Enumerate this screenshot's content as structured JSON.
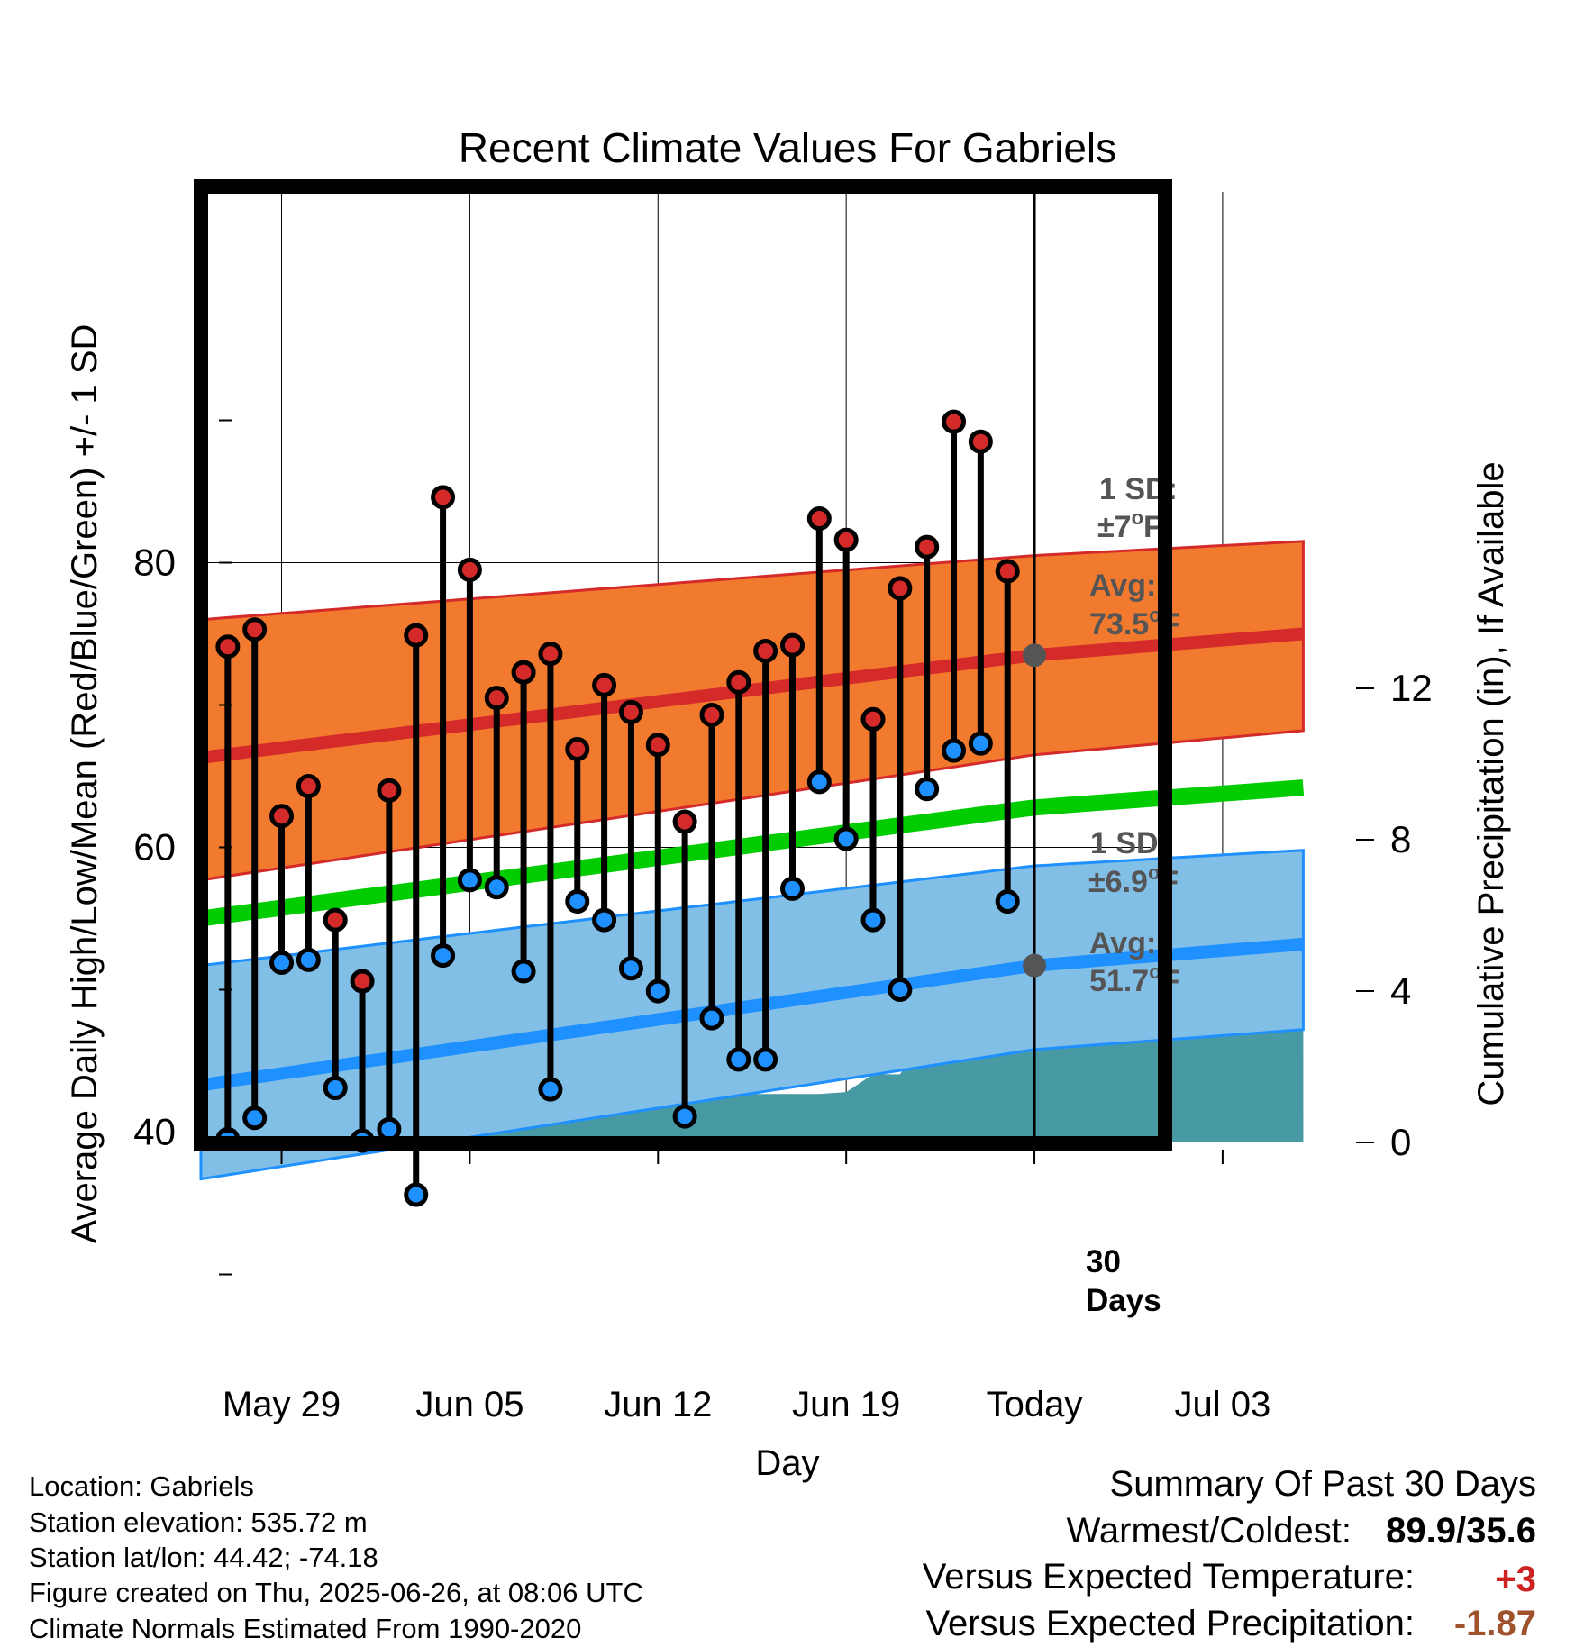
{
  "chart_data": {
    "type": "line",
    "title": "Recent Climate Values For Gabriels",
    "xlabel": "Day",
    "ylabel": "Average Daily High/Low/Mean (Red/Blue/Green) +/- 1 SD",
    "y2label": "Cumulative Precipitation (in), If Available",
    "x_tick_labels": [
      "May 29",
      "Jun 05",
      "Jun 12",
      "Jun 19",
      "Today",
      "Jul 03"
    ],
    "y_ticks": [
      40,
      60,
      80
    ],
    "y2_ticks": [
      0,
      4,
      8,
      12
    ],
    "ylim": [
      28,
      95
    ],
    "y2lim": [
      0,
      24.2
    ],
    "grid": true,
    "dates": [
      "2025-05-27",
      "2025-05-28",
      "2025-05-29",
      "2025-05-30",
      "2025-05-31",
      "2025-06-01",
      "2025-06-02",
      "2025-06-03",
      "2025-06-04",
      "2025-06-05",
      "2025-06-06",
      "2025-06-07",
      "2025-06-08",
      "2025-06-09",
      "2025-06-10",
      "2025-06-11",
      "2025-06-12",
      "2025-06-13",
      "2025-06-14",
      "2025-06-15",
      "2025-06-16",
      "2025-06-17",
      "2025-06-18",
      "2025-06-19",
      "2025-06-20",
      "2025-06-21",
      "2025-06-22",
      "2025-06-23",
      "2025-06-24",
      "2025-06-25"
    ],
    "daily_high": [
      74.1,
      75.3,
      62.2,
      64.3,
      54.9,
      50.6,
      64.0,
      74.9,
      84.6,
      79.5,
      70.5,
      72.3,
      73.6,
      66.9,
      71.4,
      69.5,
      67.2,
      61.8,
      69.3,
      71.6,
      73.8,
      74.2,
      83.1,
      81.6,
      69.0,
      78.2,
      81.1,
      89.9,
      88.5,
      79.4
    ],
    "daily_low": [
      39.5,
      41.0,
      51.9,
      52.1,
      43.1,
      39.4,
      40.2,
      35.6,
      52.4,
      57.7,
      57.2,
      51.3,
      43.0,
      56.2,
      54.9,
      51.5,
      49.9,
      41.1,
      48.0,
      45.1,
      45.1,
      57.1,
      64.6,
      60.6,
      54.9,
      50.0,
      64.1,
      66.8,
      67.3,
      56.2
    ],
    "normals": {
      "dates": [
        "2025-05-26",
        "2025-06-26",
        "2025-07-06"
      ],
      "avg_high": [
        66.3,
        73.5,
        75.0
      ],
      "avg_high_upper": [
        76.0,
        80.5,
        81.5
      ],
      "avg_high_lower": [
        57.7,
        66.5,
        68.2
      ],
      "avg_mean": [
        55.0,
        62.8,
        64.2
      ],
      "avg_low": [
        43.3,
        51.7,
        53.2
      ],
      "avg_low_upper": [
        51.7,
        58.7,
        59.8
      ],
      "avg_low_lower": [
        36.7,
        45.8,
        47.2
      ]
    },
    "precipitation": {
      "dates": [
        "2025-05-26",
        "2025-05-27",
        "2025-05-28",
        "2025-05-29",
        "2025-05-30",
        "2025-05-31",
        "2025-06-01",
        "2025-06-02",
        "2025-06-03",
        "2025-06-04",
        "2025-06-05",
        "2025-06-06",
        "2025-06-07",
        "2025-06-08",
        "2025-06-09",
        "2025-06-10",
        "2025-06-11",
        "2025-06-12",
        "2025-06-13",
        "2025-06-14",
        "2025-06-15",
        "2025-06-16",
        "2025-06-17",
        "2025-06-18",
        "2025-06-19",
        "2025-06-20",
        "2025-06-21",
        "2025-06-22",
        "2025-06-23",
        "2025-06-24",
        "2025-06-25",
        "2025-06-26",
        "2025-07-06"
      ],
      "cumulative": [
        0,
        0,
        0,
        0,
        0,
        0.55,
        0.62,
        0.62,
        0.62,
        0.62,
        0.62,
        0.95,
        0.95,
        0.95,
        1.0,
        1.25,
        1.25,
        1.27,
        1.28,
        1.28,
        1.28,
        1.28,
        1.28,
        1.28,
        1.33,
        1.8,
        1.8,
        2.75,
        2.75,
        3.25,
        3.3,
        3.3,
        3.3
      ]
    },
    "annotations": {
      "high_sd_line1": "1 SD:",
      "high_sd_line2": "±7",
      "high_avg_line1": "Avg:",
      "high_avg_line2": "73.5",
      "low_sd_line1": "1 SD:",
      "low_sd_line2": "±6.9",
      "low_avg_line1": "Avg:",
      "low_avg_line2": "51.7",
      "degree_symbol": "o",
      "unit_letter": "F",
      "days_line1": "30",
      "days_line2": "Days"
    },
    "colors": {
      "high_band": "#f27a2e",
      "high_line": "#d42a2a",
      "mean_line": "#00cc00",
      "low_band": "#82bfe6",
      "low_line": "#1e90ff",
      "precip": "#4799a3",
      "high_dot": "#d42a2a",
      "low_dot": "#1e90ff",
      "annotation_text": "#555555"
    }
  },
  "footer": {
    "location": "Location: Gabriels",
    "elevation": "Station elevation: 535.72 m",
    "latlon": "Station lat/lon: 44.42; -74.18",
    "created": "Figure created on Thu, 2025-06-26, at 08:06 UTC",
    "normals": "Climate Normals Estimated From 1990-2020"
  },
  "summary": {
    "title": "Summary Of Past 30 Days",
    "warmest_label": "Warmest/Coldest:",
    "warmest_value": "89.9/35.6",
    "temp_label": "Versus Expected Temperature:",
    "temp_value": "+3",
    "precip_label": "Versus Expected Precipitation:",
    "precip_value": "-1.87",
    "temp_color": "#cc2222",
    "precip_color": "#a0522d"
  }
}
